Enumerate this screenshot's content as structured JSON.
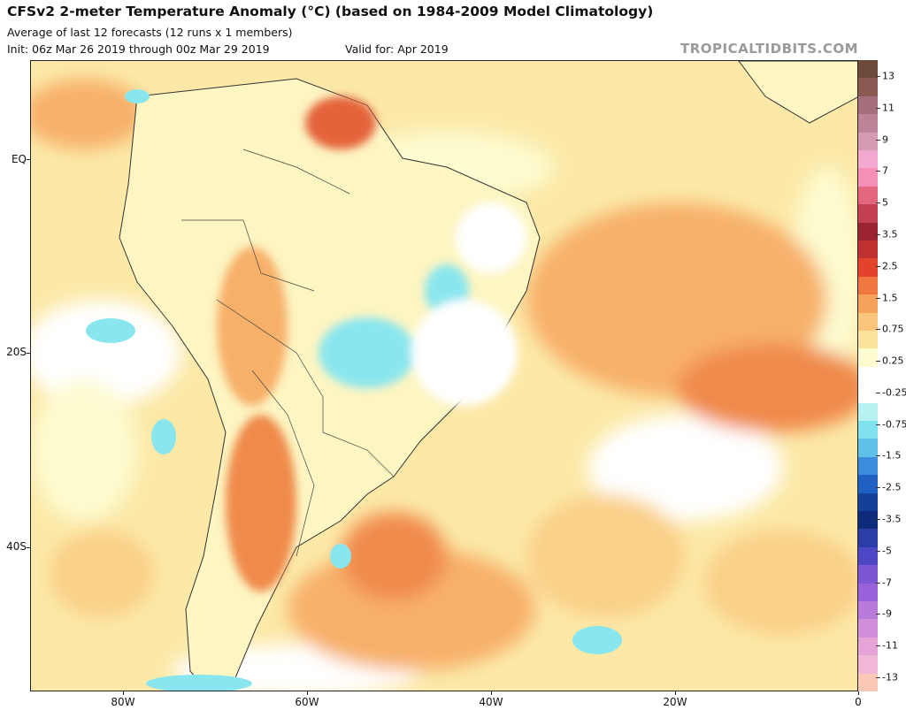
{
  "header": {
    "title": "CFSv2 2-meter Temperature Anomaly (°C) (based on 1984-2009 Model Climatology)",
    "subtitle": "Average of last 12 forecasts (12 runs x 1 members)",
    "init": "Init: 06z Mar 26 2019 through 00z Mar 29 2019",
    "valid": "Valid for: Apr 2019",
    "credit": "TROPICALTIDBITS.COM"
  },
  "axes": {
    "y_labels": [
      "EQ",
      "20S",
      "40S"
    ],
    "x_labels": [
      "80W",
      "60W",
      "40W",
      "20W",
      "0"
    ]
  },
  "colorbar": {
    "labels": [
      "13",
      "11",
      "9",
      "7",
      "5",
      "3.5",
      "2.5",
      "1.5",
      "0.75",
      "0.25",
      "-0.25",
      "-0.75",
      "-1.5",
      "-2.5",
      "-3.5",
      "-5",
      "-7",
      "-9",
      "-11",
      "-13"
    ],
    "colors": [
      "#6e4a3a",
      "#8a5a52",
      "#a46f7a",
      "#be8398",
      "#d79ab4",
      "#f2a8cf",
      "#f68fb7",
      "#e2677f",
      "#c24052",
      "#9b2433",
      "#c03232",
      "#e4432b",
      "#f0773f",
      "#f6a15a",
      "#f9c47b",
      "#fbe39a",
      "#fdfbd0",
      "#ffffff",
      "#ffffff",
      "#b6f1f1",
      "#7fe2ee",
      "#5fc0e8",
      "#3a8ddc",
      "#2060c2",
      "#134198",
      "#0f2c7c",
      "#2c3da8",
      "#4d46c5",
      "#7b57d6",
      "#9a61dc",
      "#b87bdc",
      "#d08fd8",
      "#e6a3d8",
      "#f0b8d6",
      "#fbc8b8"
    ]
  },
  "map": {
    "region": "South America and South Atlantic",
    "colors": {
      "land_base": "#fdf5c2",
      "anomaly_025": "#fce9a8",
      "anomaly_075": "#fad088",
      "anomaly_15": "#f7b06a",
      "anomaly_25": "#f08a4c",
      "anomaly_35": "#e4643a",
      "cool": "#8ae6ee",
      "cooler": "#5fc6ea",
      "neutral": "#ffffff",
      "borders": "#333333"
    }
  }
}
